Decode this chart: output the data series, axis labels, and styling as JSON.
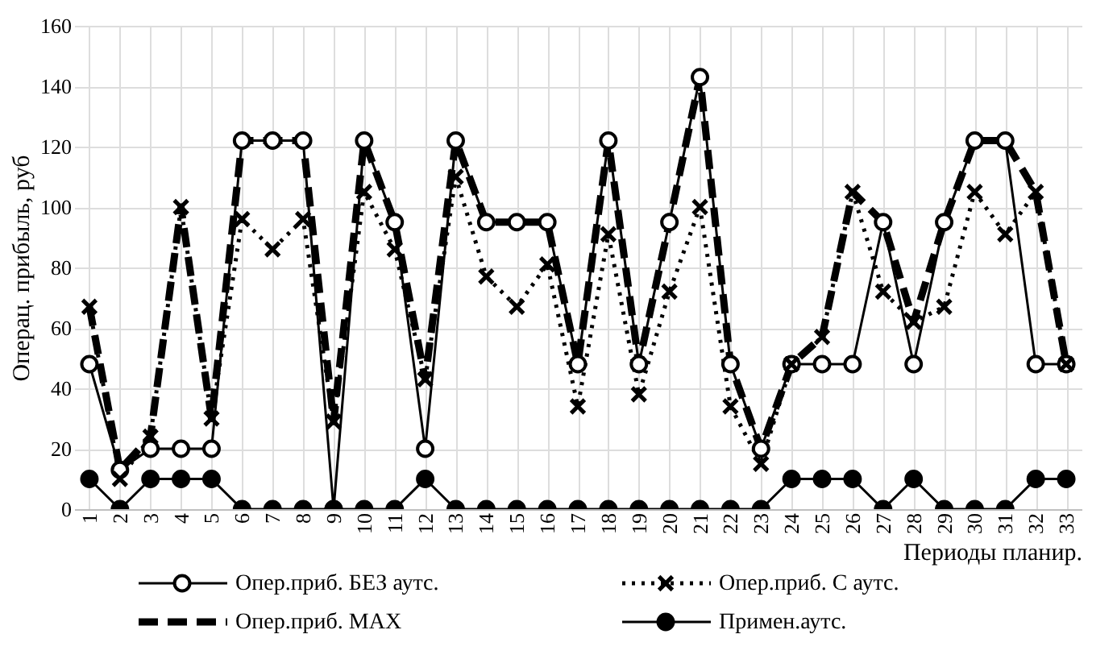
{
  "chart_data": {
    "type": "line",
    "xlabel": "Периоды планир.",
    "ylabel": "Операц. прибыль, руб",
    "categories": [
      "1",
      "2",
      "3",
      "4",
      "5",
      "6",
      "7",
      "8",
      "9",
      "10",
      "11",
      "12",
      "13",
      "14",
      "15",
      "16",
      "17",
      "18",
      "19",
      "20",
      "21",
      "22",
      "23",
      "24",
      "25",
      "26",
      "27",
      "28",
      "29",
      "30",
      "31",
      "32",
      "33"
    ],
    "series": [
      {
        "name": "Опер.приб. БЕЗ аутс.",
        "color": "#000000",
        "marker": "circle",
        "line_style": "solid",
        "values": [
          48,
          13,
          20,
          20,
          20,
          122,
          122,
          122,
          0,
          122,
          95,
          20,
          122,
          95,
          95,
          95,
          48,
          122,
          48,
          95,
          143,
          48,
          20,
          48,
          48,
          48,
          95,
          48,
          95,
          122,
          122,
          48,
          48
        ]
      },
      {
        "name": "Опер.приб. С аутс.",
        "color": "#000000",
        "marker": "cross",
        "line_style": "dotted",
        "values": [
          67,
          10,
          24,
          100,
          30,
          96,
          86,
          96,
          29,
          105,
          86,
          43,
          110,
          77,
          67,
          81,
          34,
          91,
          38,
          72,
          100,
          34,
          15,
          48,
          57,
          105,
          72,
          62,
          67,
          105,
          91,
          105,
          48
        ]
      },
      {
        "name": "Опер.приб. MAX",
        "color": "#000000",
        "marker": "none",
        "line_style": "dashed",
        "values": [
          67,
          13,
          24,
          100,
          30,
          122,
          122,
          122,
          29,
          122,
          95,
          43,
          122,
          95,
          95,
          95,
          48,
          122,
          48,
          95,
          143,
          48,
          20,
          48,
          57,
          105,
          95,
          62,
          95,
          122,
          122,
          105,
          48
        ]
      },
      {
        "name": "Примен.аутс.",
        "color": "#000000",
        "marker": "circle",
        "line_style": "solid",
        "values": [
          10,
          0,
          10,
          10,
          10,
          0,
          0,
          0,
          0,
          0,
          0,
          10,
          0,
          0,
          0,
          0,
          0,
          0,
          0,
          0,
          0,
          0,
          0,
          10,
          10,
          10,
          0,
          10,
          0,
          0,
          0,
          10,
          10
        ]
      }
    ],
    "ylim": [
      0,
      160
    ],
    "yticks": [
      0,
      20,
      40,
      60,
      80,
      100,
      120,
      140,
      160
    ],
    "grid": true,
    "legend": "bottom"
  }
}
